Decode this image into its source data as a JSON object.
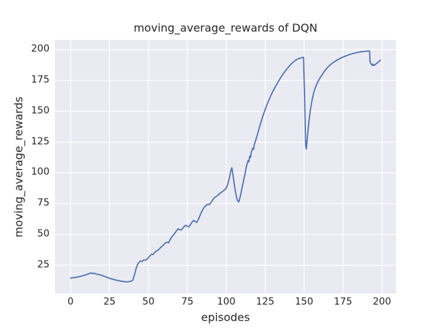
{
  "figure": {
    "title": "moving_average_rewards of DQN",
    "xlabel": "episodes",
    "ylabel": "moving_average_rewards"
  },
  "chart_data": {
    "type": "line",
    "title": "moving_average_rewards of DQN",
    "xlabel": "episodes",
    "ylabel": "moving_average_rewards",
    "xlim": [
      -10,
      209
    ],
    "ylim": [
      2,
      208
    ],
    "x_ticks": [
      0,
      25,
      50,
      75,
      100,
      125,
      150,
      175,
      200
    ],
    "y_ticks": [
      25,
      50,
      75,
      100,
      125,
      150,
      175,
      200
    ],
    "grid": true,
    "legend_position": "none",
    "colors": {
      "line": "#4C72B0",
      "plot_background": "#EAEAF2",
      "grid": "#FFFFFF",
      "text": "#262626",
      "figure_background": "#FFFFFF"
    },
    "series": [
      {
        "name": "moving_average_rewards",
        "color": "#4C72B0",
        "points": [
          [
            0,
            14.5
          ],
          [
            2,
            15
          ],
          [
            4,
            15.3
          ],
          [
            6,
            15.8
          ],
          [
            8,
            16.5
          ],
          [
            10,
            17.3
          ],
          [
            12,
            18.2
          ],
          [
            13,
            18.8
          ],
          [
            14,
            18.2
          ],
          [
            15,
            18.6
          ],
          [
            16,
            18
          ],
          [
            18,
            17.4
          ],
          [
            20,
            16.8
          ],
          [
            22,
            15.8
          ],
          [
            24,
            14.9
          ],
          [
            26,
            14
          ],
          [
            28,
            13.4
          ],
          [
            30,
            12.7
          ],
          [
            32,
            12.2
          ],
          [
            34,
            11.8
          ],
          [
            36,
            11.5
          ],
          [
            38,
            11.8
          ],
          [
            39,
            12.1
          ],
          [
            40,
            13
          ],
          [
            41,
            17
          ],
          [
            42,
            22
          ],
          [
            43,
            25.5
          ],
          [
            44,
            27.5
          ],
          [
            45,
            28.5
          ],
          [
            46,
            28.2
          ],
          [
            47,
            29.3
          ],
          [
            48,
            29.1
          ],
          [
            49,
            29.8
          ],
          [
            50,
            31.2
          ],
          [
            51,
            32.6
          ],
          [
            52,
            34
          ],
          [
            53,
            33.7
          ],
          [
            54,
            35.4
          ],
          [
            55,
            36.4
          ],
          [
            56,
            37
          ],
          [
            57,
            38.2
          ],
          [
            58,
            39.6
          ],
          [
            59,
            40.6
          ],
          [
            60,
            42
          ],
          [
            61,
            43.2
          ],
          [
            62,
            43.8
          ],
          [
            63,
            43.2
          ],
          [
            64,
            46
          ],
          [
            65,
            48
          ],
          [
            66,
            49.5
          ],
          [
            67,
            51
          ],
          [
            68,
            53
          ],
          [
            69,
            54.5
          ],
          [
            70,
            54
          ],
          [
            71,
            53.6
          ],
          [
            72,
            55
          ],
          [
            73,
            56.5
          ],
          [
            74,
            57.5
          ],
          [
            75,
            56.6
          ],
          [
            76,
            56.2
          ],
          [
            77,
            58
          ],
          [
            78,
            60
          ],
          [
            79,
            61.4
          ],
          [
            80,
            60.4
          ],
          [
            81,
            59.8
          ],
          [
            82,
            62
          ],
          [
            83,
            65
          ],
          [
            84,
            68
          ],
          [
            85,
            70.4
          ],
          [
            86,
            72.4
          ],
          [
            87,
            73.5
          ],
          [
            88,
            74.5
          ],
          [
            89,
            74.2
          ],
          [
            90,
            75.6
          ],
          [
            91,
            77.5
          ],
          [
            92,
            79.4
          ],
          [
            93,
            80.4
          ],
          [
            94,
            81.2
          ],
          [
            95,
            82.3
          ],
          [
            96,
            83.4
          ],
          [
            97,
            84.4
          ],
          [
            98,
            85.2
          ],
          [
            99,
            86.4
          ],
          [
            100,
            87.6
          ],
          [
            101,
            91
          ],
          [
            102,
            96
          ],
          [
            103,
            102
          ],
          [
            103.6,
            104.2
          ],
          [
            104.2,
            99
          ],
          [
            105,
            92
          ],
          [
            106,
            84
          ],
          [
            107,
            78
          ],
          [
            108,
            76.3
          ],
          [
            109,
            81
          ],
          [
            110,
            87
          ],
          [
            111,
            93
          ],
          [
            112,
            99
          ],
          [
            113,
            105.5
          ],
          [
            114,
            110
          ],
          [
            114.5,
            109
          ],
          [
            115,
            113.5
          ],
          [
            115.6,
            112.5
          ],
          [
            116,
            116.5
          ],
          [
            117,
            120
          ],
          [
            117.5,
            119
          ],
          [
            118,
            123
          ],
          [
            119,
            127
          ],
          [
            120,
            131
          ],
          [
            121,
            135.8
          ],
          [
            122,
            140
          ],
          [
            123,
            144.2
          ],
          [
            124,
            148
          ],
          [
            125,
            151.5
          ],
          [
            126,
            155
          ],
          [
            127,
            158
          ],
          [
            128,
            161
          ],
          [
            129,
            163.8
          ],
          [
            130,
            166.4
          ],
          [
            131,
            168.8
          ],
          [
            132,
            171
          ],
          [
            133,
            173.2
          ],
          [
            134,
            175.4
          ],
          [
            135,
            177.4
          ],
          [
            136,
            179.4
          ],
          [
            137,
            181.2
          ],
          [
            138,
            182.9
          ],
          [
            139,
            184.5
          ],
          [
            140,
            186
          ],
          [
            141,
            187.5
          ],
          [
            142,
            188.8
          ],
          [
            143,
            190
          ],
          [
            144,
            191
          ],
          [
            145,
            191.8
          ],
          [
            146,
            192.5
          ],
          [
            147,
            193
          ],
          [
            148,
            193.4
          ],
          [
            149,
            193.7
          ],
          [
            149.6,
            193.9
          ],
          [
            150.3,
            162
          ],
          [
            151,
            122
          ],
          [
            151.4,
            119.3
          ],
          [
            152,
            128
          ],
          [
            153,
            141
          ],
          [
            154,
            151
          ],
          [
            155,
            158.5
          ],
          [
            156,
            164.4
          ],
          [
            157,
            168.6
          ],
          [
            158,
            171.8
          ],
          [
            159,
            174.4
          ],
          [
            160,
            176.7
          ],
          [
            161,
            178.7
          ],
          [
            162,
            180.6
          ],
          [
            163,
            182.4
          ],
          [
            164,
            184
          ],
          [
            165,
            185.5
          ],
          [
            166,
            186.8
          ],
          [
            167,
            188
          ],
          [
            168,
            189
          ],
          [
            169,
            189.9
          ],
          [
            170,
            190.7
          ],
          [
            171,
            191.5
          ],
          [
            172,
            192.2
          ],
          [
            173,
            192.9
          ],
          [
            174,
            193.5
          ],
          [
            175,
            194.1
          ],
          [
            176,
            194.6
          ],
          [
            177,
            195.1
          ],
          [
            178,
            195.6
          ],
          [
            179,
            196
          ],
          [
            180,
            196.4
          ],
          [
            181,
            196.8
          ],
          [
            182,
            197.1
          ],
          [
            183,
            197.4
          ],
          [
            184,
            197.7
          ],
          [
            185,
            198
          ],
          [
            186,
            198.2
          ],
          [
            187,
            198.4
          ],
          [
            188,
            198.5
          ],
          [
            189,
            198.7
          ],
          [
            190,
            198.8
          ],
          [
            191,
            198.9
          ],
          [
            192,
            199
          ],
          [
            192.3,
            190.5
          ],
          [
            193,
            188.5
          ],
          [
            193.6,
            187.3
          ],
          [
            194.2,
            188.4
          ],
          [
            194.8,
            187.2
          ],
          [
            195.5,
            187.8
          ],
          [
            196.5,
            188.8
          ],
          [
            197.5,
            189.9
          ],
          [
            198.2,
            190.7
          ],
          [
            199,
            191.5
          ]
        ]
      }
    ]
  }
}
